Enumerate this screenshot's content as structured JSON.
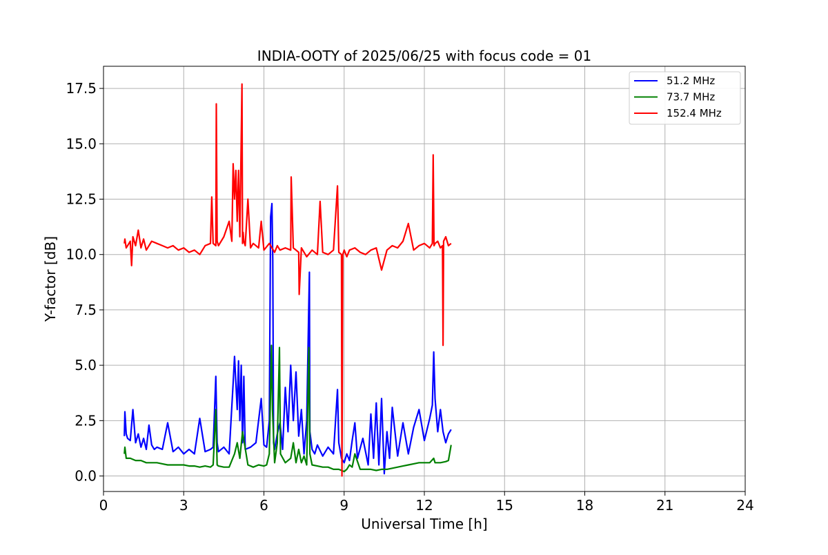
{
  "chart_data": {
    "type": "line",
    "title": "INDIA-OOTY of 2025/06/25 with focus code = 01",
    "xlabel": "Universal Time [h]",
    "ylabel": "Y-factor [dB]",
    "xlim": [
      0,
      24
    ],
    "ylim": [
      -0.7,
      18.5
    ],
    "xticks": [
      0,
      3,
      6,
      9,
      12,
      15,
      18,
      21,
      24
    ],
    "xtick_labels": [
      "0",
      "3",
      "6",
      "9",
      "12",
      "15",
      "18",
      "21",
      "24"
    ],
    "yticks": [
      0,
      2.5,
      5,
      7.5,
      10,
      12.5,
      15,
      17.5
    ],
    "ytick_labels": [
      "0.0",
      "2.5",
      "5.0",
      "7.5",
      "10.0",
      "12.5",
      "15.0",
      "17.5"
    ],
    "grid": true,
    "legend_position": "top-right",
    "series": [
      {
        "name": " 51.2 MHz",
        "color": "#0000ff",
        "x": [
          0.78,
          0.8,
          0.85,
          0.9,
          1.0,
          1.1,
          1.2,
          1.3,
          1.4,
          1.5,
          1.6,
          1.7,
          1.8,
          1.9,
          2.0,
          2.2,
          2.4,
          2.6,
          2.8,
          3.0,
          3.2,
          3.4,
          3.6,
          3.8,
          4.0,
          4.1,
          4.2,
          4.25,
          4.3,
          4.5,
          4.7,
          4.85,
          4.9,
          5.0,
          5.05,
          5.1,
          5.15,
          5.2,
          5.25,
          5.3,
          5.5,
          5.7,
          5.9,
          6.0,
          6.1,
          6.2,
          6.25,
          6.3,
          6.33,
          6.36,
          6.4,
          6.5,
          6.6,
          6.7,
          6.8,
          6.9,
          7.0,
          7.1,
          7.2,
          7.3,
          7.4,
          7.5,
          7.6,
          7.7,
          7.72,
          7.8,
          7.9,
          8.0,
          8.2,
          8.4,
          8.6,
          8.75,
          8.8,
          8.9,
          9.0,
          9.1,
          9.2,
          9.3,
          9.4,
          9.5,
          9.7,
          9.9,
          10.0,
          10.1,
          10.2,
          10.3,
          10.4,
          10.5,
          10.6,
          10.7,
          10.8,
          11.0,
          11.2,
          11.4,
          11.6,
          11.8,
          12.0,
          12.2,
          12.3,
          12.35,
          12.4,
          12.5,
          12.6,
          12.7,
          12.8,
          12.9,
          13.0
        ],
        "y": [
          1.8,
          2.9,
          1.9,
          1.7,
          1.6,
          3.0,
          1.5,
          1.9,
          1.3,
          1.7,
          1.2,
          2.3,
          1.4,
          1.2,
          1.3,
          1.2,
          2.4,
          1.1,
          1.3,
          1.0,
          1.2,
          1.0,
          2.6,
          1.1,
          1.2,
          1.3,
          4.5,
          1.5,
          1.1,
          1.3,
          1.0,
          4.2,
          5.4,
          3.0,
          5.2,
          2.5,
          5.0,
          1.5,
          4.5,
          1.2,
          1.3,
          1.5,
          3.5,
          1.4,
          1.3,
          2.5,
          11.7,
          12.3,
          9.8,
          1.5,
          1.2,
          1.9,
          2.4,
          1.2,
          4.0,
          2.0,
          5.0,
          2.5,
          4.7,
          1.8,
          3.0,
          1.0,
          2.5,
          9.2,
          2.0,
          1.2,
          1.0,
          1.4,
          0.9,
          1.3,
          1.0,
          3.9,
          1.5,
          0.8,
          0.6,
          1.0,
          0.7,
          1.6,
          2.4,
          0.8,
          1.7,
          0.5,
          2.8,
          0.8,
          3.3,
          0.5,
          3.5,
          0.1,
          2.0,
          0.8,
          3.1,
          0.9,
          2.4,
          1.0,
          2.2,
          3.0,
          1.6,
          2.6,
          3.2,
          5.6,
          3.5,
          2.0,
          3.0,
          2.0,
          1.5,
          1.9,
          2.1
        ]
      },
      {
        "name": " 73.7 MHz",
        "color": "#008000",
        "x": [
          0.78,
          0.8,
          0.85,
          1.0,
          1.2,
          1.4,
          1.6,
          1.8,
          2.0,
          2.2,
          2.4,
          2.6,
          2.8,
          3.0,
          3.2,
          3.4,
          3.6,
          3.8,
          4.0,
          4.1,
          4.2,
          4.25,
          4.3,
          4.5,
          4.7,
          4.9,
          5.0,
          5.1,
          5.2,
          5.4,
          5.6,
          5.8,
          6.0,
          6.1,
          6.2,
          6.28,
          6.32,
          6.4,
          6.5,
          6.58,
          6.62,
          6.8,
          7.0,
          7.1,
          7.2,
          7.3,
          7.4,
          7.5,
          7.6,
          7.68,
          7.72,
          7.8,
          8.0,
          8.2,
          8.4,
          8.6,
          8.8,
          8.9,
          9.0,
          9.1,
          9.2,
          9.3,
          9.4,
          9.6,
          9.8,
          10.0,
          10.2,
          10.4,
          10.6,
          10.8,
          11.0,
          11.2,
          11.4,
          11.6,
          11.8,
          12.0,
          12.2,
          12.35,
          12.4,
          12.6,
          12.8,
          12.9,
          13.0
        ],
        "y": [
          1.0,
          1.3,
          0.8,
          0.8,
          0.7,
          0.7,
          0.6,
          0.6,
          0.6,
          0.55,
          0.5,
          0.5,
          0.5,
          0.5,
          0.45,
          0.45,
          0.4,
          0.45,
          0.4,
          0.5,
          3.0,
          0.5,
          0.45,
          0.4,
          0.4,
          1.0,
          1.5,
          0.8,
          2.0,
          0.5,
          0.4,
          0.5,
          0.45,
          0.5,
          1.0,
          5.9,
          3.0,
          0.6,
          1.5,
          5.8,
          1.0,
          0.6,
          0.8,
          1.5,
          0.6,
          1.2,
          0.6,
          0.9,
          0.5,
          5.8,
          1.0,
          0.5,
          0.45,
          0.4,
          0.4,
          0.3,
          0.3,
          0.25,
          0.2,
          0.3,
          0.5,
          0.4,
          1.0,
          0.3,
          0.3,
          0.3,
          0.25,
          0.3,
          0.3,
          0.35,
          0.4,
          0.45,
          0.5,
          0.55,
          0.6,
          0.6,
          0.6,
          0.8,
          0.6,
          0.6,
          0.65,
          0.7,
          1.4
        ]
      },
      {
        "name": " 152.4 MHz",
        "color": "#ff0000",
        "x": [
          0.78,
          0.8,
          0.85,
          0.9,
          1.0,
          1.05,
          1.1,
          1.2,
          1.3,
          1.4,
          1.5,
          1.6,
          1.8,
          2.0,
          2.2,
          2.4,
          2.6,
          2.8,
          3.0,
          3.2,
          3.4,
          3.6,
          3.8,
          4.0,
          4.05,
          4.1,
          4.2,
          4.22,
          4.25,
          4.3,
          4.5,
          4.7,
          4.8,
          4.85,
          4.9,
          4.95,
          5.0,
          5.05,
          5.1,
          5.15,
          5.18,
          5.2,
          5.22,
          5.25,
          5.3,
          5.4,
          5.5,
          5.6,
          5.8,
          5.9,
          6.0,
          6.2,
          6.4,
          6.5,
          6.6,
          6.8,
          7.0,
          7.02,
          7.1,
          7.3,
          7.32,
          7.4,
          7.6,
          7.8,
          8.0,
          8.1,
          8.2,
          8.4,
          8.6,
          8.75,
          8.8,
          8.9,
          8.92,
          8.95,
          9.0,
          9.1,
          9.2,
          9.4,
          9.6,
          9.8,
          10.0,
          10.2,
          10.4,
          10.6,
          10.8,
          11.0,
          11.2,
          11.4,
          11.6,
          11.8,
          12.0,
          12.2,
          12.3,
          12.33,
          12.36,
          12.4,
          12.5,
          12.6,
          12.68,
          12.7,
          12.72,
          12.8,
          12.9,
          13.0
        ],
        "y": [
          10.5,
          10.7,
          10.3,
          10.4,
          10.6,
          9.5,
          10.8,
          10.4,
          11.1,
          10.3,
          10.7,
          10.2,
          10.6,
          10.5,
          10.4,
          10.3,
          10.4,
          10.2,
          10.3,
          10.1,
          10.2,
          10.0,
          10.4,
          10.5,
          12.6,
          10.5,
          10.4,
          16.8,
          10.6,
          10.4,
          10.8,
          11.5,
          10.6,
          14.1,
          12.5,
          13.8,
          11.5,
          13.8,
          10.8,
          15.2,
          17.7,
          10.5,
          11.0,
          10.6,
          10.4,
          12.5,
          10.3,
          10.5,
          10.3,
          11.5,
          10.2,
          10.5,
          10.1,
          10.4,
          10.2,
          10.3,
          10.2,
          13.5,
          10.3,
          10.1,
          8.2,
          10.3,
          9.9,
          10.2,
          10.0,
          12.4,
          10.1,
          10.0,
          10.2,
          13.1,
          10.1,
          10.0,
          0.0,
          10.0,
          10.2,
          9.9,
          10.2,
          10.3,
          10.1,
          10.0,
          10.2,
          10.3,
          9.3,
          10.2,
          10.4,
          10.3,
          10.6,
          11.4,
          10.2,
          10.4,
          10.5,
          10.3,
          10.5,
          14.5,
          10.4,
          10.5,
          10.6,
          10.3,
          10.4,
          5.9,
          10.6,
          10.8,
          10.4,
          10.5
        ]
      }
    ]
  }
}
